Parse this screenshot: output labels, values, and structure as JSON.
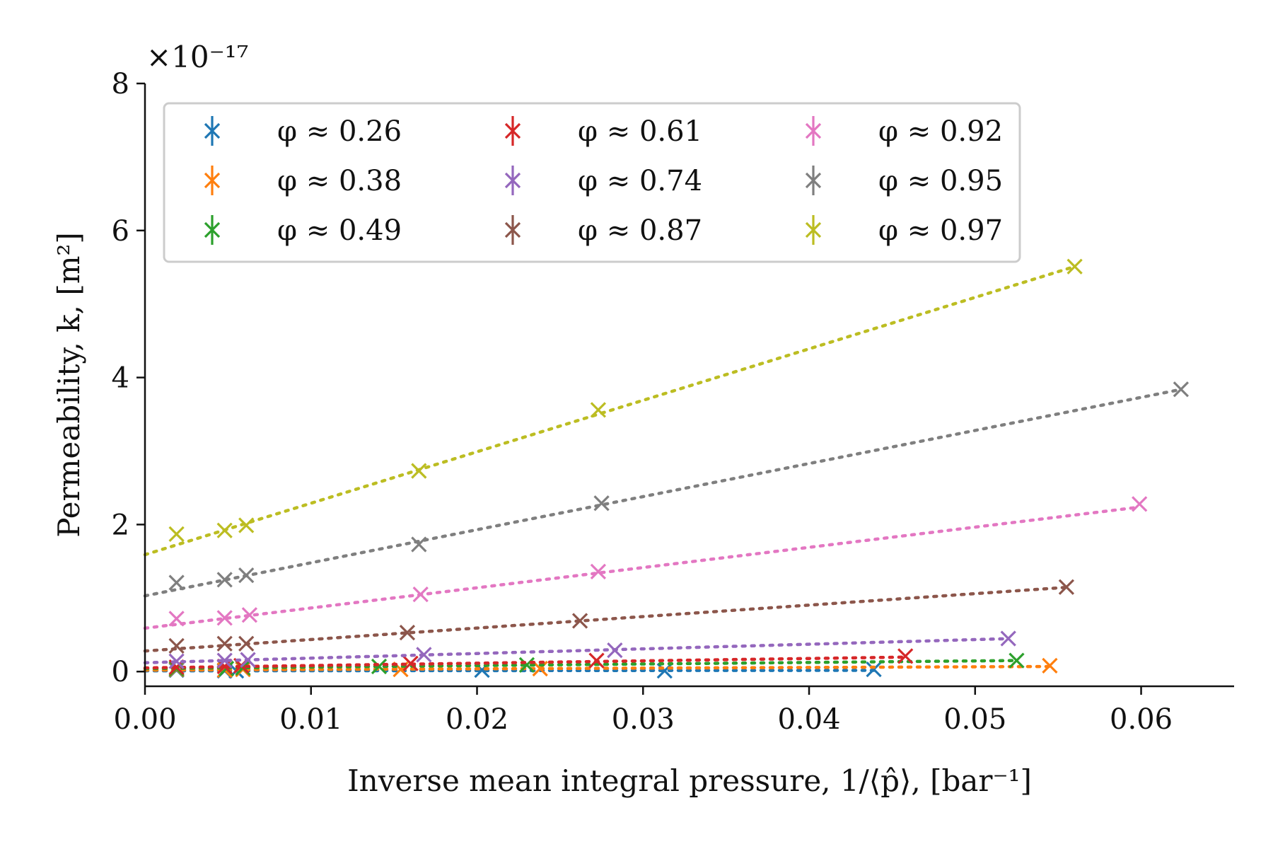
{
  "chart_data": {
    "type": "scatter",
    "title": "",
    "xlabel": "Inverse mean integral pressure, 1/⟨p̂⟩, [bar⁻¹]",
    "ylabel": "Permeability, k, [m²]",
    "y_scale_label": "×10⁻¹⁷",
    "xlim": [
      0,
      0.0656
    ],
    "ylim": [
      -0.2,
      8
    ],
    "x_ticks": [
      0,
      0.01,
      0.02,
      0.03,
      0.04,
      0.05,
      0.06
    ],
    "x_tick_labels": [
      "0.00",
      "0.01",
      "0.02",
      "0.03",
      "0.04",
      "0.05",
      "0.06"
    ],
    "y_ticks": [
      0,
      2,
      4,
      6,
      8
    ],
    "y_tick_labels": [
      "0",
      "2",
      "4",
      "6",
      "8"
    ],
    "grid": false,
    "legend_position": "top-left",
    "legend_columns": 3,
    "line_style": "dotted linear fit",
    "series": [
      {
        "name": "φ ≈ 0.26",
        "color": "#1f77b4",
        "x": [
          0.0019,
          0.0048,
          0.0055,
          0.0203,
          0.0313,
          0.0439
        ],
        "y": [
          0.02,
          0.01,
          0.01,
          0.02,
          0.01,
          0.03
        ],
        "fit": [
          0.01,
          0.15
        ]
      },
      {
        "name": "φ ≈ 0.38",
        "color": "#ff7f0e",
        "x": [
          0.0019,
          0.0048,
          0.0059,
          0.0154,
          0.0238,
          0.0545
        ],
        "y": [
          0.03,
          0.02,
          0.03,
          0.03,
          0.04,
          0.08
        ],
        "fit": [
          0.02,
          0.9
        ]
      },
      {
        "name": "φ ≈ 0.49",
        "color": "#2ca02c",
        "x": [
          0.0019,
          0.0049,
          0.0059,
          0.0141,
          0.023,
          0.0525
        ],
        "y": [
          0.04,
          0.04,
          0.05,
          0.07,
          0.09,
          0.15
        ],
        "fit": [
          0.04,
          2.1
        ]
      },
      {
        "name": "φ ≈ 0.61",
        "color": "#d62728",
        "x": [
          0.0019,
          0.0048,
          0.0058,
          0.016,
          0.0272,
          0.0458
        ],
        "y": [
          0.06,
          0.07,
          0.08,
          0.11,
          0.15,
          0.21
        ],
        "fit": [
          0.05,
          3.2
        ]
      },
      {
        "name": "φ ≈ 0.74",
        "color": "#9467bd",
        "x": [
          0.0019,
          0.0048,
          0.0062,
          0.0168,
          0.0283,
          0.052
        ],
        "y": [
          0.14,
          0.15,
          0.16,
          0.23,
          0.29,
          0.45
        ],
        "fit": [
          0.12,
          6.3
        ]
      },
      {
        "name": "φ ≈ 0.87",
        "color": "#8c564b",
        "x": [
          0.0019,
          0.0048,
          0.0061,
          0.0158,
          0.0262,
          0.0555
        ],
        "y": [
          0.35,
          0.38,
          0.38,
          0.53,
          0.69,
          1.15
        ],
        "fit": [
          0.28,
          15.6
        ]
      },
      {
        "name": "φ ≈ 0.92",
        "color": "#e377c2",
        "x": [
          0.0019,
          0.0048,
          0.0063,
          0.0166,
          0.0273,
          0.0599
        ],
        "y": [
          0.72,
          0.73,
          0.77,
          1.05,
          1.36,
          2.28
        ],
        "fit": [
          0.59,
          27.5
        ]
      },
      {
        "name": "φ ≈ 0.95",
        "color": "#7f7f7f",
        "x": [
          0.0019,
          0.0048,
          0.0061,
          0.0165,
          0.0275,
          0.0624
        ],
        "y": [
          1.21,
          1.25,
          1.31,
          1.73,
          2.29,
          3.84
        ],
        "fit": [
          1.03,
          45.0
        ]
      },
      {
        "name": "φ ≈ 0.97",
        "color": "#bcbd22",
        "x": [
          0.0019,
          0.0048,
          0.0061,
          0.0165,
          0.0273,
          0.056
        ],
        "y": [
          1.87,
          1.92,
          1.99,
          2.73,
          3.56,
          5.51
        ],
        "fit": [
          1.59,
          70.0
        ]
      }
    ]
  }
}
